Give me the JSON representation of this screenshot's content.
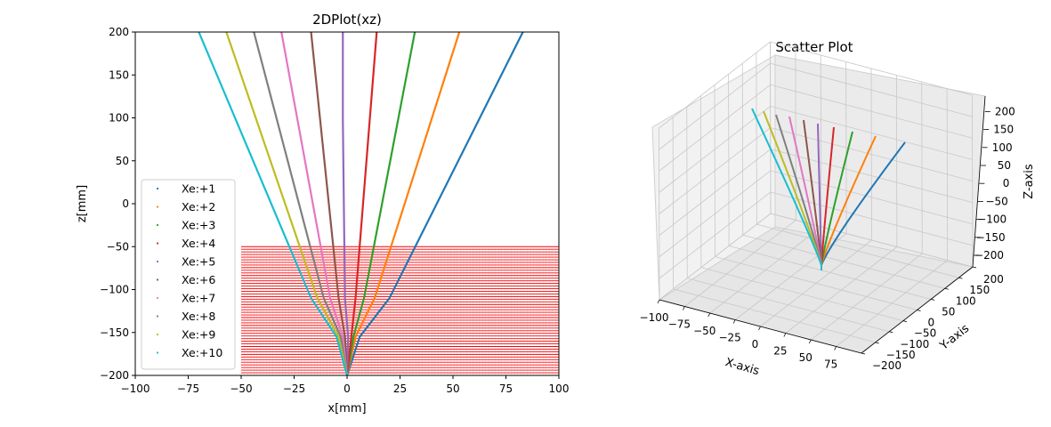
{
  "colors": {
    "series": [
      "#1f77b4",
      "#ff7f0e",
      "#2ca02c",
      "#d62728",
      "#9467bd",
      "#8c564b",
      "#e377c2",
      "#7f7f7f",
      "#bcbd22",
      "#17becf"
    ],
    "field_lines": "#ff0000",
    "pane_grid": "#c8c8c8",
    "pane_face": "#f2f2f2"
  },
  "chart_data": [
    {
      "type": "line",
      "title": "2DPlot(xz)",
      "xlabel": "x[mm]",
      "ylabel": "z[mm]",
      "xlim": [
        -100,
        100
      ],
      "ylim": [
        -200,
        200
      ],
      "x_ticks": [
        -100,
        -75,
        -50,
        -25,
        0,
        25,
        50,
        75,
        100
      ],
      "y_ticks": [
        -200,
        -150,
        -100,
        -50,
        0,
        50,
        100,
        150,
        200
      ],
      "grid": false,
      "legend_position": "lower-left",
      "series": [
        {
          "name": "Xe:+1",
          "x": [
            0,
            6,
            20,
            83
          ],
          "z": [
            -200,
            -155,
            -110,
            200
          ]
        },
        {
          "name": "Xe:+2",
          "x": [
            0,
            4,
            13,
            53
          ],
          "z": [
            -200,
            -155,
            -110,
            200
          ]
        },
        {
          "name": "Xe:+3",
          "x": [
            0,
            3,
            8,
            32
          ],
          "z": [
            -200,
            -155,
            -110,
            200
          ]
        },
        {
          "name": "Xe:+4",
          "x": [
            0,
            2,
            4,
            14
          ],
          "z": [
            -200,
            -155,
            -110,
            200
          ]
        },
        {
          "name": "Xe:+5",
          "x": [
            0,
            0.5,
            -1,
            -2,
            -2
          ],
          "z": [
            -200,
            -155,
            -110,
            100,
            200
          ]
        },
        {
          "name": "Xe:+6",
          "x": [
            0,
            -1,
            -4,
            -17
          ],
          "z": [
            -200,
            -155,
            -110,
            200
          ]
        },
        {
          "name": "Xe:+7",
          "x": [
            0,
            -2,
            -8,
            -31
          ],
          "z": [
            -200,
            -155,
            -110,
            200
          ]
        },
        {
          "name": "Xe:+8",
          "x": [
            0,
            -3,
            -11,
            -44
          ],
          "z": [
            -200,
            -155,
            -110,
            200
          ]
        },
        {
          "name": "Xe:+9",
          "x": [
            0,
            -4,
            -14,
            -57
          ],
          "z": [
            -200,
            -155,
            -110,
            200
          ]
        },
        {
          "name": "Xe:+10",
          "x": [
            0,
            -5,
            -17,
            -70
          ],
          "z": [
            -200,
            -155,
            -110,
            200
          ]
        }
      ],
      "field_lines": {
        "x_range": [
          -50,
          100
        ],
        "z_range": [
          -200,
          -50
        ],
        "count": 50
      }
    },
    {
      "type": "line3d",
      "title": "Scatter Plot",
      "xlabel": "X-axis",
      "ylabel": "Y-axis",
      "zlabel": "Z-axis",
      "x_ticks": [
        -100,
        -75,
        -50,
        -25,
        0,
        25,
        50,
        75
      ],
      "y_ticks": [
        -200,
        -150,
        -100,
        -50,
        0,
        50,
        100,
        150,
        200
      ],
      "z_ticks": [
        -200,
        -150,
        -100,
        -50,
        0,
        50,
        100,
        150,
        200
      ],
      "grid": true
    }
  ]
}
